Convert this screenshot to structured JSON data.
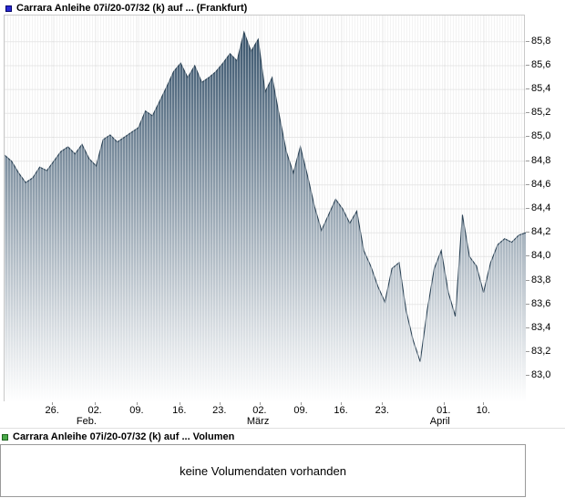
{
  "price_section": {
    "legend_label": "Carrara Anleihe 07i/20-07/32 (k) auf ... (Frankfurt)",
    "legend_color": "#2a2ad4",
    "legend_border": "#000066"
  },
  "volume_section": {
    "legend_label": "Carrara Anleihe 07i/20-07/32 (k) auf ... Volumen",
    "legend_color": "#4aa94a",
    "legend_border": "#1d641d",
    "message": "keine Volumendaten vorhanden"
  },
  "chart_data": {
    "type": "area",
    "title": "Carrara Anleihe 07i/20-07/32 (k) auf ... (Frankfurt)",
    "xlabel": "",
    "ylabel": "",
    "grid": true,
    "legend_position": "top-left",
    "ylim": [
      82.78,
      86.02
    ],
    "y_ticks": [
      {
        "label": "85,8",
        "value": 85.8
      },
      {
        "label": "85,6",
        "value": 85.6
      },
      {
        "label": "85,4",
        "value": 85.4
      },
      {
        "label": "85,2",
        "value": 85.2
      },
      {
        "label": "85,0",
        "value": 85.0
      },
      {
        "label": "84,8",
        "value": 84.8
      },
      {
        "label": "84,6",
        "value": 84.6
      },
      {
        "label": "84,4",
        "value": 84.4
      },
      {
        "label": "84,2",
        "value": 84.2
      },
      {
        "label": "84,0",
        "value": 84.0
      },
      {
        "label": "83,8",
        "value": 83.8
      },
      {
        "label": "83,6",
        "value": 83.6
      },
      {
        "label": "83,4",
        "value": 83.4
      },
      {
        "label": "83,2",
        "value": 83.2
      },
      {
        "label": "83,0",
        "value": 83.0
      }
    ],
    "x_ticks": [
      {
        "label": "26.",
        "pos": 0.093
      },
      {
        "label": "02.",
        "pos": 0.175
      },
      {
        "label": "09.",
        "pos": 0.255
      },
      {
        "label": "16.",
        "pos": 0.337
      },
      {
        "label": "23.",
        "pos": 0.414
      },
      {
        "label": "02.",
        "pos": 0.491
      },
      {
        "label": "09.",
        "pos": 0.57
      },
      {
        "label": "16.",
        "pos": 0.647
      },
      {
        "label": "23.",
        "pos": 0.726
      },
      {
        "label": "01.",
        "pos": 0.844
      },
      {
        "label": "10.",
        "pos": 0.92
      }
    ],
    "month_labels": [
      {
        "label": "Feb.",
        "pos": 0.159
      },
      {
        "label": "März",
        "pos": 0.488
      },
      {
        "label": "April",
        "pos": 0.837
      }
    ],
    "series": [
      {
        "name": "Carrara Anleihe 07i/20-07/32 (k) auf ...",
        "color": "#2e4558",
        "fill_top": "#3b566e",
        "fill_bottom": "#ffffff",
        "values": [
          84.85,
          84.8,
          84.7,
          84.62,
          84.66,
          84.75,
          84.72,
          84.8,
          84.88,
          84.92,
          84.86,
          84.94,
          84.82,
          84.76,
          84.98,
          85.02,
          84.96,
          85.0,
          85.04,
          85.08,
          85.22,
          85.18,
          85.3,
          85.42,
          85.55,
          85.62,
          85.5,
          85.6,
          85.46,
          85.5,
          85.55,
          85.62,
          85.7,
          85.64,
          85.88,
          85.72,
          85.82,
          85.38,
          85.5,
          85.18,
          84.88,
          84.7,
          84.92,
          84.68,
          84.42,
          84.22,
          84.35,
          84.48,
          84.4,
          84.28,
          84.38,
          84.05,
          83.92,
          83.75,
          83.62,
          83.9,
          83.95,
          83.55,
          83.3,
          83.12,
          83.55,
          83.9,
          84.05,
          83.7,
          83.5,
          84.35,
          84.0,
          83.92,
          83.7,
          83.95,
          84.1,
          84.15,
          84.12,
          84.18,
          84.2
        ]
      }
    ]
  }
}
